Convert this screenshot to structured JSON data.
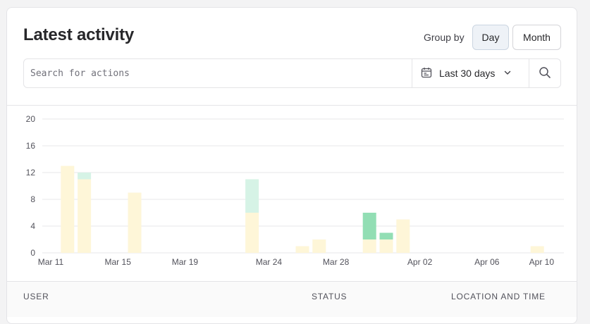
{
  "header": {
    "title": "Latest activity"
  },
  "group_by": {
    "label": "Group by",
    "options": [
      {
        "label": "Day",
        "active": true
      },
      {
        "label": "Month",
        "active": false
      }
    ]
  },
  "search": {
    "placeholder": "Search for actions",
    "value": ""
  },
  "date_range": {
    "label": "Last 30 days",
    "icon": "calendar-icon",
    "chevron": "chevron-down-icon"
  },
  "search_button": {
    "icon": "search-icon"
  },
  "colors": {
    "series_a": "#fef6d8",
    "series_b": "#d6f3e6",
    "series_b_strong": "#92deb4",
    "grid": "#e7e7ea",
    "axis_text": "#52525b"
  },
  "chart_data": {
    "type": "bar",
    "stacked": true,
    "title": "",
    "xlabel": "",
    "ylabel": "",
    "ylim": [
      0,
      20
    ],
    "y_ticks": [
      0,
      4,
      8,
      12,
      16,
      20
    ],
    "x_ticks": [
      "Mar 11",
      "Mar 15",
      "Mar 19",
      "Mar 24",
      "Mar 28",
      "Apr 02",
      "Apr 06",
      "Apr 10"
    ],
    "categories": [
      "Mar 12",
      "Mar 13",
      "Mar 16",
      "Mar 23",
      "Mar 26",
      "Mar 27",
      "Mar 30",
      "Mar 31",
      "Apr 01",
      "Apr 09"
    ],
    "series": [
      {
        "values": [
          13,
          11,
          9,
          6,
          1,
          2,
          2,
          2,
          5,
          1
        ]
      },
      {
        "values": [
          0,
          1,
          0,
          5,
          0,
          0,
          4,
          1,
          0,
          0
        ]
      }
    ],
    "grid": true,
    "legend": "none"
  },
  "table": {
    "columns": [
      "USER",
      "STATUS",
      "LOCATION AND TIME"
    ]
  }
}
